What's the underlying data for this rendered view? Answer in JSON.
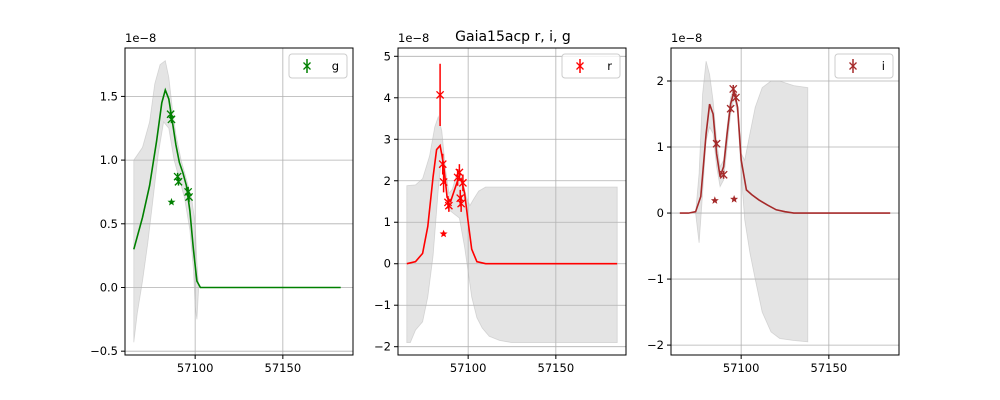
{
  "title": "Gaia15acp  r, i, g",
  "chart_data": [
    {
      "type": "line",
      "band": "g",
      "color": "#008000",
      "legend_label": "g",
      "legend_position": "upper right",
      "exponent_label": "1e−8",
      "grid": true,
      "xlim": [
        57060,
        57190
      ],
      "ylim": [
        -0.53,
        1.88
      ],
      "xticks": [
        57100,
        57150
      ],
      "xtick_labels": [
        "57100",
        "57150"
      ],
      "yticks": [
        -0.5,
        0.0,
        0.5,
        1.0,
        1.5
      ],
      "ytick_labels": [
        "−0.5",
        "0.0",
        "0.5",
        "1.0",
        "1.5"
      ],
      "model_line": {
        "x": [
          57065,
          57070,
          57074,
          57078,
          57081,
          57083,
          57085,
          57087,
          57089,
          57091,
          57093,
          57095,
          57097,
          57099,
          57101,
          57103,
          57110,
          57130,
          57160,
          57183
        ],
        "y": [
          0.3,
          0.55,
          0.8,
          1.15,
          1.45,
          1.55,
          1.48,
          1.3,
          1.12,
          0.98,
          0.9,
          0.8,
          0.6,
          0.3,
          0.05,
          0.0,
          0.0,
          0.0,
          0.0,
          0.0
        ]
      },
      "band_upper": {
        "x": [
          57065,
          57070,
          57074,
          57077,
          57080,
          57083,
          57085,
          57087,
          57089,
          57092,
          57095,
          57098,
          57100,
          57101,
          57102
        ],
        "y": [
          1.0,
          1.1,
          1.3,
          1.6,
          1.75,
          1.78,
          1.65,
          1.4,
          1.2,
          1.0,
          0.85,
          0.7,
          0.5,
          0.2,
          0.0
        ]
      },
      "band_lower": {
        "x": [
          57065,
          57067,
          57070,
          57073,
          57076,
          57079,
          57082,
          57085,
          57088,
          57091,
          57094,
          57097,
          57099,
          57100,
          57101,
          57102
        ],
        "y": [
          -0.43,
          -0.2,
          0.05,
          0.35,
          0.7,
          1.05,
          1.3,
          1.25,
          1.0,
          0.85,
          0.7,
          0.45,
          0.15,
          -0.15,
          -0.25,
          0.0
        ]
      },
      "obs": [
        {
          "x": 57086,
          "y": 1.36,
          "yerr": 0.03
        },
        {
          "x": 57086.5,
          "y": 1.32,
          "yerr": 0.03
        },
        {
          "x": 57090,
          "y": 0.87,
          "yerr": 0.03
        },
        {
          "x": 57090.5,
          "y": 0.83,
          "yerr": 0.03
        },
        {
          "x": 57096,
          "y": 0.75,
          "yerr": 0.04
        },
        {
          "x": 57096.5,
          "y": 0.71,
          "yerr": 0.04
        }
      ],
      "stars": [
        {
          "x": 57086.5,
          "y": 0.67
        }
      ]
    },
    {
      "type": "line",
      "band": "r",
      "color": "#ff0000",
      "legend_label": "r",
      "legend_position": "upper right",
      "exponent_label": "1e−8",
      "grid": true,
      "xlim": [
        57060,
        57190
      ],
      "ylim": [
        -2.2,
        5.2
      ],
      "xticks": [
        57100,
        57150
      ],
      "xtick_labels": [
        "57100",
        "57150"
      ],
      "yticks": [
        -2,
        -1,
        0,
        1,
        2,
        3,
        4,
        5
      ],
      "ytick_labels": [
        "−2",
        "−1",
        "0",
        "1",
        "2",
        "3",
        "4",
        "5"
      ],
      "model_line": {
        "x": [
          57065,
          57070,
          57074,
          57077,
          57080,
          57082,
          57084,
          57086,
          57088,
          57090,
          57092,
          57094,
          57096,
          57098,
          57100,
          57102,
          57105,
          57110,
          57130,
          57160,
          57185
        ],
        "y": [
          0.0,
          0.05,
          0.25,
          0.9,
          2.1,
          2.75,
          2.85,
          2.4,
          1.6,
          1.5,
          1.75,
          2.0,
          2.05,
          1.7,
          1.0,
          0.35,
          0.05,
          0.0,
          0.0,
          0.0,
          0.0
        ]
      },
      "band_upper": {
        "x": [
          57065,
          57070,
          57074,
          57078,
          57081,
          57083,
          57085,
          57087,
          57089,
          57091,
          57093,
          57095,
          57097,
          57099,
          57101,
          57103,
          57106,
          57110,
          57185
        ],
        "y": [
          1.88,
          1.9,
          2.05,
          2.6,
          3.3,
          3.55,
          3.2,
          2.3,
          1.7,
          1.8,
          2.1,
          2.2,
          2.0,
          1.6,
          1.4,
          1.55,
          1.75,
          1.85,
          1.85
        ]
      },
      "band_lower": {
        "x": [
          57065,
          57067,
          57070,
          57074,
          57077,
          57080,
          57083,
          57085,
          57087,
          57089,
          57092,
          57095,
          57098,
          57100,
          57102,
          57105,
          57108,
          57112,
          57118,
          57125,
          57135,
          57185
        ],
        "y": [
          -1.9,
          -1.9,
          -1.6,
          -1.4,
          -0.8,
          0.2,
          1.8,
          2.6,
          2.0,
          1.3,
          1.2,
          1.1,
          0.4,
          -0.2,
          -0.8,
          -1.3,
          -1.55,
          -1.75,
          -1.85,
          -1.9,
          -1.9,
          -1.9
        ]
      },
      "obs": [
        {
          "x": 57084,
          "y": 4.07,
          "yerr": 0.75
        },
        {
          "x": 57085.5,
          "y": 2.4,
          "yerr": 0.25
        },
        {
          "x": 57086,
          "y": 1.97,
          "yerr": 0.25
        },
        {
          "x": 57088.5,
          "y": 1.48,
          "yerr": 0.15
        },
        {
          "x": 57089,
          "y": 1.4,
          "yerr": 0.15
        },
        {
          "x": 57094,
          "y": 2.08,
          "yerr": 0.2
        },
        {
          "x": 57095,
          "y": 2.2,
          "yerr": 0.2
        },
        {
          "x": 57095.5,
          "y": 1.58,
          "yerr": 0.2
        },
        {
          "x": 57096,
          "y": 1.45,
          "yerr": 0.2
        },
        {
          "x": 57097,
          "y": 1.95,
          "yerr": 0.2
        }
      ],
      "stars": [
        {
          "x": 57086,
          "y": 0.72
        }
      ]
    },
    {
      "type": "line",
      "band": "i",
      "color": "#a52a2a",
      "legend_label": "i",
      "legend_position": "upper right",
      "exponent_label": "1e−8",
      "grid": true,
      "xlim": [
        57060,
        57190
      ],
      "ylim": [
        -2.15,
        2.5
      ],
      "xticks": [
        57100,
        57150
      ],
      "xtick_labels": [
        "57100",
        "57150"
      ],
      "yticks": [
        -2,
        -1,
        0,
        1,
        2
      ],
      "ytick_labels": [
        "−2",
        "−1",
        "0",
        "1",
        "2"
      ],
      "model_line": {
        "x": [
          57065,
          57070,
          57074,
          57077,
          57080,
          57082,
          57084,
          57086,
          57088,
          57090,
          57092,
          57094,
          57096,
          57098,
          57100,
          57103,
          57106,
          57110,
          57115,
          57120,
          57125,
          57130,
          57140,
          57160,
          57185
        ],
        "y": [
          0.0,
          0.0,
          0.02,
          0.25,
          1.2,
          1.65,
          1.5,
          0.9,
          0.55,
          0.7,
          1.2,
          1.65,
          1.85,
          1.6,
          0.8,
          0.35,
          0.28,
          0.2,
          0.12,
          0.05,
          0.02,
          0.0,
          0.0,
          0.0,
          0.0
        ]
      },
      "band_upper": {
        "x": [
          57074,
          57076,
          57078,
          57080,
          57082,
          57084,
          57086,
          57088,
          57090,
          57092,
          57094,
          57096,
          57098,
          57100,
          57102,
          57105,
          57108,
          57112,
          57117,
          57122,
          57130,
          57138
        ],
        "y": [
          0.0,
          0.6,
          1.8,
          2.3,
          2.1,
          1.7,
          1.1,
          0.7,
          0.8,
          1.3,
          1.75,
          1.9,
          1.6,
          0.9,
          0.8,
          1.2,
          1.6,
          1.9,
          2.0,
          2.0,
          1.93,
          1.9
        ]
      },
      "band_lower": {
        "x": [
          57074,
          57076,
          57078,
          57080,
          57082,
          57084,
          57086,
          57088,
          57090,
          57092,
          57094,
          57096,
          57098,
          57100,
          57102,
          57105,
          57108,
          57112,
          57117,
          57122,
          57130,
          57138
        ],
        "y": [
          0.0,
          -0.45,
          0.3,
          1.1,
          1.3,
          1.2,
          0.7,
          0.4,
          0.5,
          1.0,
          1.5,
          1.75,
          1.5,
          0.6,
          -0.1,
          -0.6,
          -1.0,
          -1.5,
          -1.8,
          -1.9,
          -1.93,
          -1.95
        ]
      },
      "obs": [
        {
          "x": 57086,
          "y": 1.05,
          "yerr": 0.05
        },
        {
          "x": 57090,
          "y": 0.58,
          "yerr": 0.06
        },
        {
          "x": 57094,
          "y": 1.58,
          "yerr": 0.05
        },
        {
          "x": 57095.5,
          "y": 1.88,
          "yerr": 0.06
        },
        {
          "x": 57097,
          "y": 1.75,
          "yerr": 0.06
        }
      ],
      "stars": [
        {
          "x": 57085,
          "y": 0.19
        },
        {
          "x": 57096,
          "y": 0.21
        }
      ]
    }
  ]
}
